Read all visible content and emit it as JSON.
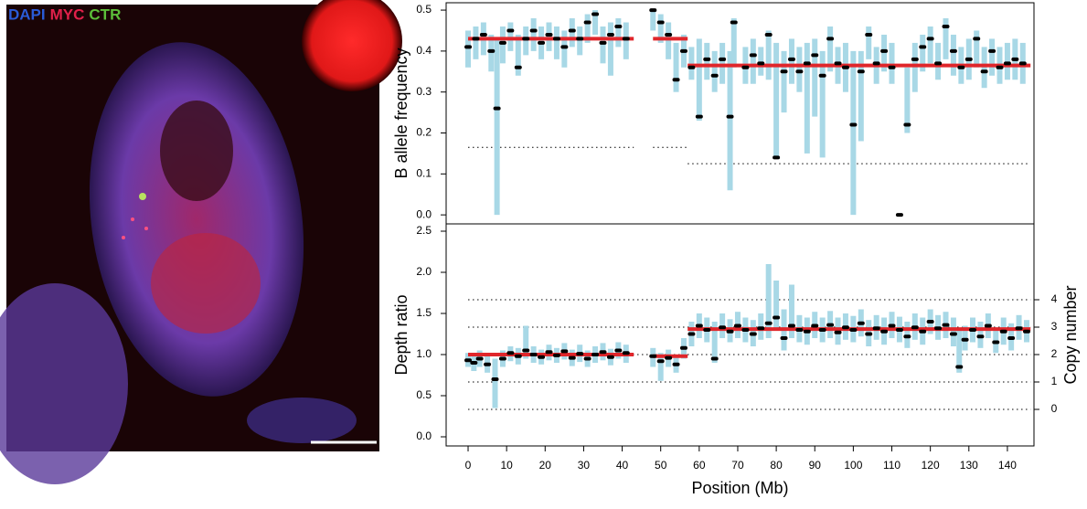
{
  "image": {
    "labels": [
      {
        "text": "DAPI",
        "color": "#2a5bd7"
      },
      {
        "text": "MYC",
        "color": "#e0204a"
      },
      {
        "text": "CTR",
        "color": "#5cbf3a"
      }
    ]
  },
  "chart_data": [
    {
      "type": "errorbar",
      "ylabel": "B allele frequency",
      "xlim": [
        -5.7,
        146.9
      ],
      "ylim": [
        -0.022,
        0.518
      ],
      "yticks": [
        {
          "value": 0,
          "label": "0.0"
        },
        0.1,
        0.2,
        0.3,
        0.4,
        0.5
      ],
      "color": "#000000",
      "error_color": "#a8d8e6",
      "segment_color": "#e0262b",
      "x": [
        0,
        2,
        4,
        6,
        7.5,
        9,
        11,
        13,
        15,
        17,
        19,
        21,
        23,
        25,
        27,
        29,
        31,
        33,
        35,
        37,
        39,
        41,
        48,
        50,
        52,
        54,
        56,
        58,
        60,
        62,
        64,
        66,
        68,
        69,
        72,
        74,
        76,
        78,
        80,
        82,
        84,
        86,
        88,
        90,
        92,
        94,
        96,
        98,
        100,
        102,
        104,
        106,
        108,
        110,
        112,
        114,
        116,
        118,
        120,
        122,
        124,
        126,
        128,
        130,
        132,
        134,
        136,
        138,
        140,
        142,
        144
      ],
      "values": [
        0.41,
        0.43,
        0.44,
        0.4,
        0.26,
        0.42,
        0.45,
        0.36,
        0.43,
        0.45,
        0.42,
        0.44,
        0.43,
        0.41,
        0.45,
        0.43,
        0.47,
        0.49,
        0.42,
        0.44,
        0.46,
        0.43,
        0.5,
        0.47,
        0.44,
        0.33,
        0.4,
        0.36,
        0.24,
        0.38,
        0.34,
        0.38,
        0.24,
        0.47,
        0.36,
        0.39,
        0.37,
        0.44,
        0.14,
        0.35,
        0.38,
        0.35,
        0.37,
        0.39,
        0.34,
        0.43,
        0.37,
        0.36,
        0.22,
        0.35,
        0.44,
        0.37,
        0.4,
        0.36,
        0.0,
        0.22,
        0.38,
        0.41,
        0.43,
        0.37,
        0.46,
        0.4,
        0.36,
        0.38,
        0.43,
        0.35,
        0.4,
        0.36,
        0.37,
        0.38,
        0.37
      ],
      "lower": [
        0.36,
        0.38,
        0.39,
        0.35,
        0.0,
        0.37,
        0.4,
        0.34,
        0.39,
        0.4,
        0.38,
        0.4,
        0.38,
        0.36,
        0.41,
        0.39,
        0.42,
        0.44,
        0.37,
        0.34,
        0.41,
        0.38,
        0.45,
        0.42,
        0.38,
        0.3,
        0.36,
        0.33,
        0.23,
        0.33,
        0.3,
        0.32,
        0.06,
        0.36,
        0.32,
        0.32,
        0.34,
        0.33,
        0.14,
        0.25,
        0.32,
        0.3,
        0.15,
        0.24,
        0.14,
        0.35,
        0.32,
        0.3,
        0.0,
        0.18,
        0.38,
        0.32,
        0.35,
        0.32,
        0.0,
        0.2,
        0.3,
        0.35,
        0.37,
        0.33,
        0.38,
        0.34,
        0.32,
        0.33,
        0.36,
        0.31,
        0.34,
        0.32,
        0.33,
        0.33,
        0.32
      ],
      "upper": [
        0.45,
        0.46,
        0.47,
        0.44,
        0.43,
        0.46,
        0.47,
        0.44,
        0.46,
        0.48,
        0.46,
        0.47,
        0.46,
        0.45,
        0.48,
        0.46,
        0.49,
        0.5,
        0.46,
        0.47,
        0.48,
        0.47,
        0.5,
        0.49,
        0.47,
        0.42,
        0.44,
        0.41,
        0.43,
        0.42,
        0.4,
        0.42,
        0.4,
        0.48,
        0.41,
        0.43,
        0.41,
        0.45,
        0.42,
        0.4,
        0.43,
        0.41,
        0.42,
        0.43,
        0.4,
        0.46,
        0.41,
        0.42,
        0.4,
        0.4,
        0.46,
        0.41,
        0.44,
        0.42,
        0.0,
        0.36,
        0.42,
        0.44,
        0.46,
        0.42,
        0.48,
        0.44,
        0.41,
        0.43,
        0.45,
        0.41,
        0.43,
        0.41,
        0.42,
        0.43,
        0.42
      ],
      "segments": [
        {
          "start": 0,
          "end": 43,
          "value": 0.43
        },
        {
          "start": 48,
          "end": 57,
          "value": 0.43
        },
        {
          "start": 57,
          "end": 146,
          "value": 0.365
        }
      ],
      "reference_lines": [
        {
          "start": 0,
          "end": 43,
          "value": 0.165
        },
        {
          "start": 48,
          "end": 57,
          "value": 0.165
        },
        {
          "start": 57,
          "end": 146,
          "value": 0.125
        }
      ]
    },
    {
      "type": "errorbar",
      "ylabel": "Depth ratio",
      "xlabel": "Position (Mb)",
      "y2label": "Copy number",
      "xlim": [
        -5.7,
        146.9
      ],
      "ylim": [
        -0.111,
        2.589
      ],
      "y2lim": [
        -1.333,
        6.767
      ],
      "xticks": [
        0,
        10,
        20,
        30,
        40,
        50,
        60,
        70,
        80,
        90,
        100,
        110,
        120,
        130,
        140
      ],
      "yticks": [
        {
          "value": 0,
          "label": "0.0"
        },
        0.5,
        {
          "value": 1,
          "label": "1.0"
        },
        1.5,
        {
          "value": 2,
          "label": "2.0"
        },
        2.5
      ],
      "y2ticks": [
        0,
        1,
        2,
        3,
        4
      ],
      "y2grid": true,
      "grid_span": [
        0,
        146
      ],
      "color": "#000000",
      "error_color": "#a8d8e6",
      "segment_color": "#e0262b",
      "x": [
        0,
        1.5,
        3,
        5,
        7,
        9,
        11,
        13,
        15,
        17,
        19,
        21,
        23,
        25,
        27,
        29,
        31,
        33,
        35,
        37,
        39,
        41,
        48,
        50,
        52,
        54,
        56,
        58,
        60,
        62,
        64,
        66,
        68,
        70,
        72,
        74,
        76,
        78,
        80,
        82,
        84,
        86,
        88,
        90,
        92,
        94,
        96,
        98,
        100,
        102,
        104,
        106,
        108,
        110,
        112,
        114,
        116,
        118,
        120,
        122,
        124,
        126,
        127.5,
        129,
        131,
        133,
        135,
        137,
        139,
        141,
        143,
        145
      ],
      "values": [
        0.93,
        0.9,
        0.95,
        0.88,
        0.7,
        0.95,
        1.02,
        0.98,
        1.05,
        1.0,
        0.97,
        1.03,
        0.99,
        1.04,
        0.96,
        1.01,
        0.95,
        1.0,
        1.03,
        0.97,
        1.05,
        1.02,
        0.98,
        0.92,
        0.96,
        0.88,
        1.08,
        1.25,
        1.35,
        1.3,
        0.95,
        1.33,
        1.28,
        1.35,
        1.3,
        1.25,
        1.32,
        1.38,
        1.45,
        1.2,
        1.35,
        1.3,
        1.28,
        1.35,
        1.3,
        1.36,
        1.27,
        1.33,
        1.3,
        1.38,
        1.25,
        1.32,
        1.28,
        1.35,
        1.3,
        1.22,
        1.33,
        1.28,
        1.4,
        1.32,
        1.36,
        1.25,
        0.85,
        1.18,
        1.3,
        1.22,
        1.35,
        1.15,
        1.28,
        1.2,
        1.32,
        1.28
      ],
      "lower": [
        0.85,
        0.8,
        0.85,
        0.78,
        0.35,
        0.85,
        0.92,
        0.88,
        0.95,
        0.9,
        0.88,
        0.93,
        0.9,
        0.94,
        0.86,
        0.91,
        0.85,
        0.9,
        0.93,
        0.87,
        0.95,
        0.9,
        0.85,
        0.68,
        0.85,
        0.78,
        0.95,
        1.1,
        1.2,
        1.15,
        0.9,
        1.2,
        1.15,
        1.2,
        1.15,
        1.1,
        1.18,
        1.2,
        1.3,
        1.05,
        1.2,
        1.15,
        1.12,
        1.2,
        1.15,
        1.2,
        1.12,
        1.18,
        1.15,
        1.22,
        1.1,
        1.18,
        1.12,
        1.2,
        1.15,
        1.08,
        1.18,
        1.12,
        1.25,
        1.18,
        1.2,
        1.1,
        0.78,
        1.05,
        1.15,
        1.08,
        1.2,
        1.02,
        1.12,
        1.05,
        1.18,
        1.15
      ],
      "upper": [
        1.02,
        1.0,
        1.05,
        0.98,
        0.95,
        1.05,
        1.1,
        1.08,
        1.35,
        1.1,
        1.06,
        1.12,
        1.08,
        1.14,
        1.06,
        1.12,
        1.05,
        1.1,
        1.14,
        1.07,
        1.15,
        1.12,
        1.08,
        1.02,
        1.06,
        1.0,
        1.2,
        1.4,
        1.5,
        1.45,
        1.4,
        1.5,
        1.43,
        1.52,
        1.45,
        1.42,
        1.5,
        2.1,
        1.9,
        1.55,
        1.85,
        1.48,
        1.45,
        1.52,
        1.45,
        1.53,
        1.45,
        1.5,
        1.47,
        1.55,
        1.42,
        1.48,
        1.45,
        1.52,
        1.46,
        1.4,
        1.5,
        1.45,
        1.55,
        1.48,
        1.52,
        1.45,
        1.3,
        1.35,
        1.45,
        1.4,
        1.5,
        1.32,
        1.45,
        1.38,
        1.48,
        1.42
      ],
      "segments": [
        {
          "start": 0,
          "end": 43,
          "value": 1.0
        },
        {
          "start": 48,
          "end": 57,
          "value": 0.98
        },
        {
          "start": 57,
          "end": 146,
          "value": 1.31
        }
      ]
    }
  ]
}
